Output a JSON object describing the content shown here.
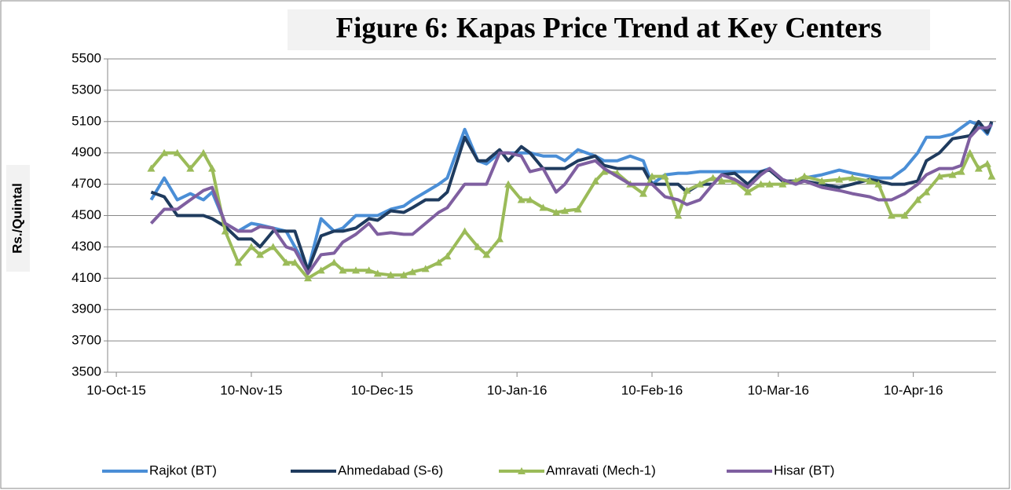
{
  "chart_data": {
    "type": "line",
    "title": "Figure 6: Kapas Price Trend at Key Centers",
    "y_label": "Rs./Quintal",
    "x": [
      "2015-10-18",
      "2015-10-21",
      "2015-10-24",
      "2015-10-27",
      "2015-10-30",
      "2015-11-01",
      "2015-11-04",
      "2015-11-07",
      "2015-11-10",
      "2015-11-12",
      "2015-11-15",
      "2015-11-18",
      "2015-11-20",
      "2015-11-23",
      "2015-11-26",
      "2015-11-29",
      "2015-12-01",
      "2015-12-04",
      "2015-12-07",
      "2015-12-09",
      "2015-12-12",
      "2015-12-15",
      "2015-12-17",
      "2015-12-20",
      "2015-12-23",
      "2015-12-25",
      "2015-12-29",
      "2016-01-01",
      "2016-01-03",
      "2016-01-06",
      "2016-01-08",
      "2016-01-11",
      "2016-01-13",
      "2016-01-16",
      "2016-01-19",
      "2016-01-21",
      "2016-01-24",
      "2016-01-28",
      "2016-01-30",
      "2016-02-02",
      "2016-02-05",
      "2016-02-08",
      "2016-02-10",
      "2016-02-13",
      "2016-02-16",
      "2016-02-18",
      "2016-02-21",
      "2016-02-24",
      "2016-02-26",
      "2016-02-29",
      "2016-03-03",
      "2016-03-06",
      "2016-03-08",
      "2016-03-11",
      "2016-03-14",
      "2016-03-16",
      "2016-03-20",
      "2016-03-24",
      "2016-03-27",
      "2016-03-31",
      "2016-04-02",
      "2016-04-05",
      "2016-04-08",
      "2016-04-11",
      "2016-04-13",
      "2016-04-16",
      "2016-04-19",
      "2016-04-21",
      "2016-04-23",
      "2016-04-25",
      "2016-04-27",
      "2016-04-28"
    ],
    "series": [
      {
        "name": "Rajkot  (BT)",
        "color": "#4a8ed6",
        "marker": "none",
        "values": [
          4600,
          4740,
          4600,
          4640,
          4600,
          4650,
          4450,
          4400,
          4450,
          4440,
          4420,
          4400,
          4300,
          4150,
          4480,
          4400,
          4420,
          4500,
          4500,
          4500,
          4540,
          4560,
          4600,
          4650,
          4700,
          4740,
          5050,
          4850,
          4830,
          4900,
          4900,
          4900,
          4900,
          4880,
          4880,
          4850,
          4920,
          4880,
          4850,
          4850,
          4880,
          4850,
          4700,
          4760,
          4770,
          4770,
          4780,
          4780,
          4780,
          4780,
          4780,
          4780,
          4800,
          4730,
          4700,
          4740,
          4760,
          4790,
          4770,
          4750,
          4740,
          4740,
          4800,
          4900,
          5000,
          5000,
          5020,
          5060,
          5100,
          5080,
          5020,
          5090
        ]
      },
      {
        "name": "Ahmedabad  (S-6)",
        "color": "#1f3b5e",
        "marker": "none",
        "values": [
          4650,
          4620,
          4500,
          4500,
          4500,
          4480,
          4430,
          4350,
          4350,
          4300,
          4400,
          4400,
          4400,
          4150,
          4370,
          4400,
          4400,
          4420,
          4480,
          4470,
          4530,
          4520,
          4550,
          4600,
          4600,
          4650,
          5000,
          4850,
          4850,
          4920,
          4850,
          4940,
          4900,
          4800,
          4800,
          4800,
          4850,
          4880,
          4820,
          4800,
          4800,
          4800,
          4700,
          4700,
          4700,
          4650,
          4700,
          4700,
          4760,
          4770,
          4700,
          4780,
          4790,
          4720,
          4720,
          4720,
          4700,
          4680,
          4700,
          4730,
          4720,
          4700,
          4700,
          4720,
          4850,
          4900,
          4990,
          5000,
          5010,
          5100,
          5030,
          5100
        ]
      },
      {
        "name": "Amravati (Mech-1)",
        "color": "#9bbb59",
        "marker": "triangle",
        "values": [
          4800,
          4900,
          4900,
          4800,
          4900,
          4800,
          4400,
          4200,
          4300,
          4250,
          4300,
          4200,
          4200,
          4100,
          4150,
          4200,
          4150,
          4150,
          4150,
          4130,
          4120,
          4120,
          4140,
          4160,
          4200,
          4240,
          4400,
          4300,
          4250,
          4350,
          4700,
          4600,
          4600,
          4550,
          4520,
          4530,
          4540,
          4720,
          4780,
          4770,
          4700,
          4640,
          4750,
          4750,
          4500,
          4660,
          4700,
          4740,
          4720,
          4720,
          4650,
          4700,
          4700,
          4700,
          4720,
          4750,
          4720,
          4730,
          4740,
          4720,
          4700,
          4500,
          4500,
          4600,
          4650,
          4750,
          4760,
          4780,
          4900,
          4800,
          4830,
          4750
        ]
      },
      {
        "name": "Hisar  (BT)",
        "color": "#7f5fa0",
        "marker": "none",
        "values": [
          4450,
          4540,
          4540,
          4600,
          4660,
          4680,
          4450,
          4400,
          4400,
          4430,
          4420,
          4300,
          4280,
          4130,
          4250,
          4260,
          4330,
          4380,
          4450,
          4380,
          4390,
          4380,
          4380,
          4450,
          4520,
          4550,
          4700,
          4700,
          4700,
          4900,
          4900,
          4880,
          4780,
          4800,
          4650,
          4700,
          4820,
          4850,
          4800,
          4750,
          4700,
          4700,
          4700,
          4620,
          4600,
          4570,
          4600,
          4700,
          4760,
          4730,
          4680,
          4760,
          4800,
          4730,
          4700,
          4720,
          4680,
          4660,
          4640,
          4620,
          4600,
          4600,
          4640,
          4700,
          4760,
          4800,
          4800,
          4820,
          5000,
          5060,
          5060,
          5080
        ]
      }
    ],
    "xlim": [
      "2015-10-08",
      "2016-04-29"
    ],
    "xticks": [
      {
        "value": "2015-10-10",
        "label": "10-Oct-15"
      },
      {
        "value": "2015-11-10",
        "label": "10-Nov-15"
      },
      {
        "value": "2015-12-10",
        "label": "10-Dec-15"
      },
      {
        "value": "2016-01-10",
        "label": "10-Jan-16"
      },
      {
        "value": "2016-02-10",
        "label": "10-Feb-16"
      },
      {
        "value": "2016-03-10",
        "label": "10-Mar-16"
      },
      {
        "value": "2016-04-10",
        "label": "10-Apr-16"
      }
    ],
    "ylim": [
      3500,
      5500
    ],
    "yticks": [
      3500,
      3700,
      3900,
      4100,
      4300,
      4500,
      4700,
      4900,
      5100,
      5300,
      5500
    ],
    "grid": true,
    "legend": "bottom"
  }
}
